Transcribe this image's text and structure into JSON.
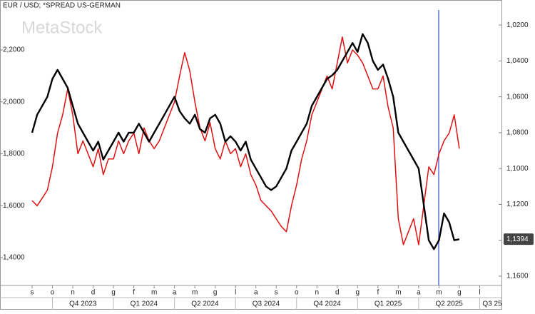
{
  "chart_data": {
    "type": "line",
    "title": "EUR / USD; *SPREAD US-GERMAN",
    "watermark": "MetaStock",
    "categories": [
      "s",
      null,
      null,
      null,
      "o",
      null,
      null,
      null,
      "n",
      null,
      null,
      null,
      "d",
      null,
      null,
      null,
      "g",
      null,
      null,
      null,
      "f",
      null,
      null,
      null,
      "m",
      null,
      null,
      null,
      "a",
      null,
      null,
      null,
      "m",
      null,
      null,
      null,
      "g",
      null,
      null,
      null,
      "l",
      null,
      null,
      null,
      "a",
      null,
      null,
      null,
      "s",
      null,
      null,
      null,
      "o",
      null,
      null,
      null,
      "n",
      null,
      null,
      null,
      "d",
      null,
      null,
      null,
      "g",
      null,
      null,
      null,
      "f",
      null,
      null,
      null,
      "m",
      null,
      null,
      null,
      "a",
      null,
      null,
      null,
      "m",
      null,
      null,
      null,
      "g",
      null,
      null,
      null,
      "l"
    ],
    "quarters": [
      "Q4 2023",
      "Q1 2024",
      "Q2 2024",
      "Q3 2024",
      "Q4 2024",
      "Q1 2025",
      "Q2 2025",
      "Q3 25"
    ],
    "series": [
      {
        "color": "#e01010",
        "axis": "y",
        "values": [
          1.62,
          1.6,
          1.63,
          1.66,
          1.75,
          1.88,
          1.95,
          2.05,
          1.95,
          1.8,
          1.85,
          1.8,
          1.75,
          1.82,
          1.72,
          1.78,
          1.78,
          1.85,
          1.8,
          1.85,
          1.88,
          1.8,
          1.9,
          1.85,
          1.82,
          1.85,
          1.9,
          1.95,
          2.0,
          2.1,
          2.19,
          2.12,
          2.0,
          1.9,
          1.85,
          1.92,
          1.82,
          1.78,
          1.85,
          1.8,
          1.82,
          1.75,
          1.8,
          1.72,
          1.68,
          1.62,
          1.6,
          1.58,
          1.55,
          1.52,
          1.5,
          1.6,
          1.68,
          1.78,
          1.85,
          1.95,
          2.0,
          2.05,
          2.1,
          2.05,
          2.15,
          2.25,
          2.15,
          2.2,
          2.18,
          2.15,
          2.1,
          2.05,
          2.05,
          2.1,
          1.98,
          1.9,
          1.55,
          1.45,
          1.5,
          1.55,
          1.45,
          1.6,
          1.75,
          1.72,
          1.8,
          1.85,
          1.88,
          1.95,
          1.82,
          null,
          null,
          null,
          null
        ]
      },
      {
        "color": "#000000",
        "axis": "y2",
        "values": [
          1.08,
          1.07,
          1.065,
          1.06,
          1.05,
          1.045,
          1.05,
          1.055,
          1.065,
          1.075,
          1.08,
          1.085,
          1.09,
          1.085,
          1.095,
          1.09,
          1.085,
          1.08,
          1.085,
          1.08,
          1.08,
          1.075,
          1.08,
          1.085,
          1.08,
          1.075,
          1.07,
          1.065,
          1.06,
          1.068,
          1.072,
          1.075,
          1.07,
          1.078,
          1.08,
          1.072,
          1.07,
          1.075,
          1.085,
          1.082,
          1.085,
          1.09,
          1.085,
          1.095,
          1.1,
          1.105,
          1.11,
          1.112,
          1.11,
          1.105,
          1.1,
          1.09,
          1.085,
          1.08,
          1.075,
          1.065,
          1.06,
          1.055,
          1.05,
          1.048,
          1.045,
          1.04,
          1.035,
          1.03,
          1.035,
          1.025,
          1.03,
          1.04,
          1.045,
          1.042,
          1.05,
          1.06,
          1.08,
          1.085,
          1.09,
          1.095,
          1.1,
          1.12,
          1.14,
          1.145,
          1.14,
          1.125,
          1.13,
          1.14,
          1.1394,
          null,
          null,
          null,
          null
        ]
      }
    ],
    "last_label": {
      "value": 1.1394,
      "label": "1,1394"
    },
    "ylim": [
      1.293,
      2.354
    ],
    "yticks": [
      {
        "value": 1.4,
        "label": "1,4000"
      },
      {
        "value": 1.6,
        "label": "1,6000"
      },
      {
        "value": 1.8,
        "label": "1,8000"
      },
      {
        "value": 2.0,
        "label": "2,0000"
      },
      {
        "value": 2.2,
        "label": "2,2000"
      }
    ],
    "y2lim": [
      1.1652,
      1.0116
    ],
    "y2ticks": [
      {
        "value": 1.02,
        "label": "1,0200"
      },
      {
        "value": 1.04,
        "label": "1,0400"
      },
      {
        "value": 1.06,
        "label": "1,0600"
      },
      {
        "value": 1.08,
        "label": "1,0800"
      },
      {
        "value": 1.1,
        "label": "1,1000"
      },
      {
        "value": 1.12,
        "label": "1,1200"
      },
      {
        "value": 1.14,
        "label": "1,1400"
      },
      {
        "value": 1.16,
        "label": "1,1600"
      }
    ]
  }
}
